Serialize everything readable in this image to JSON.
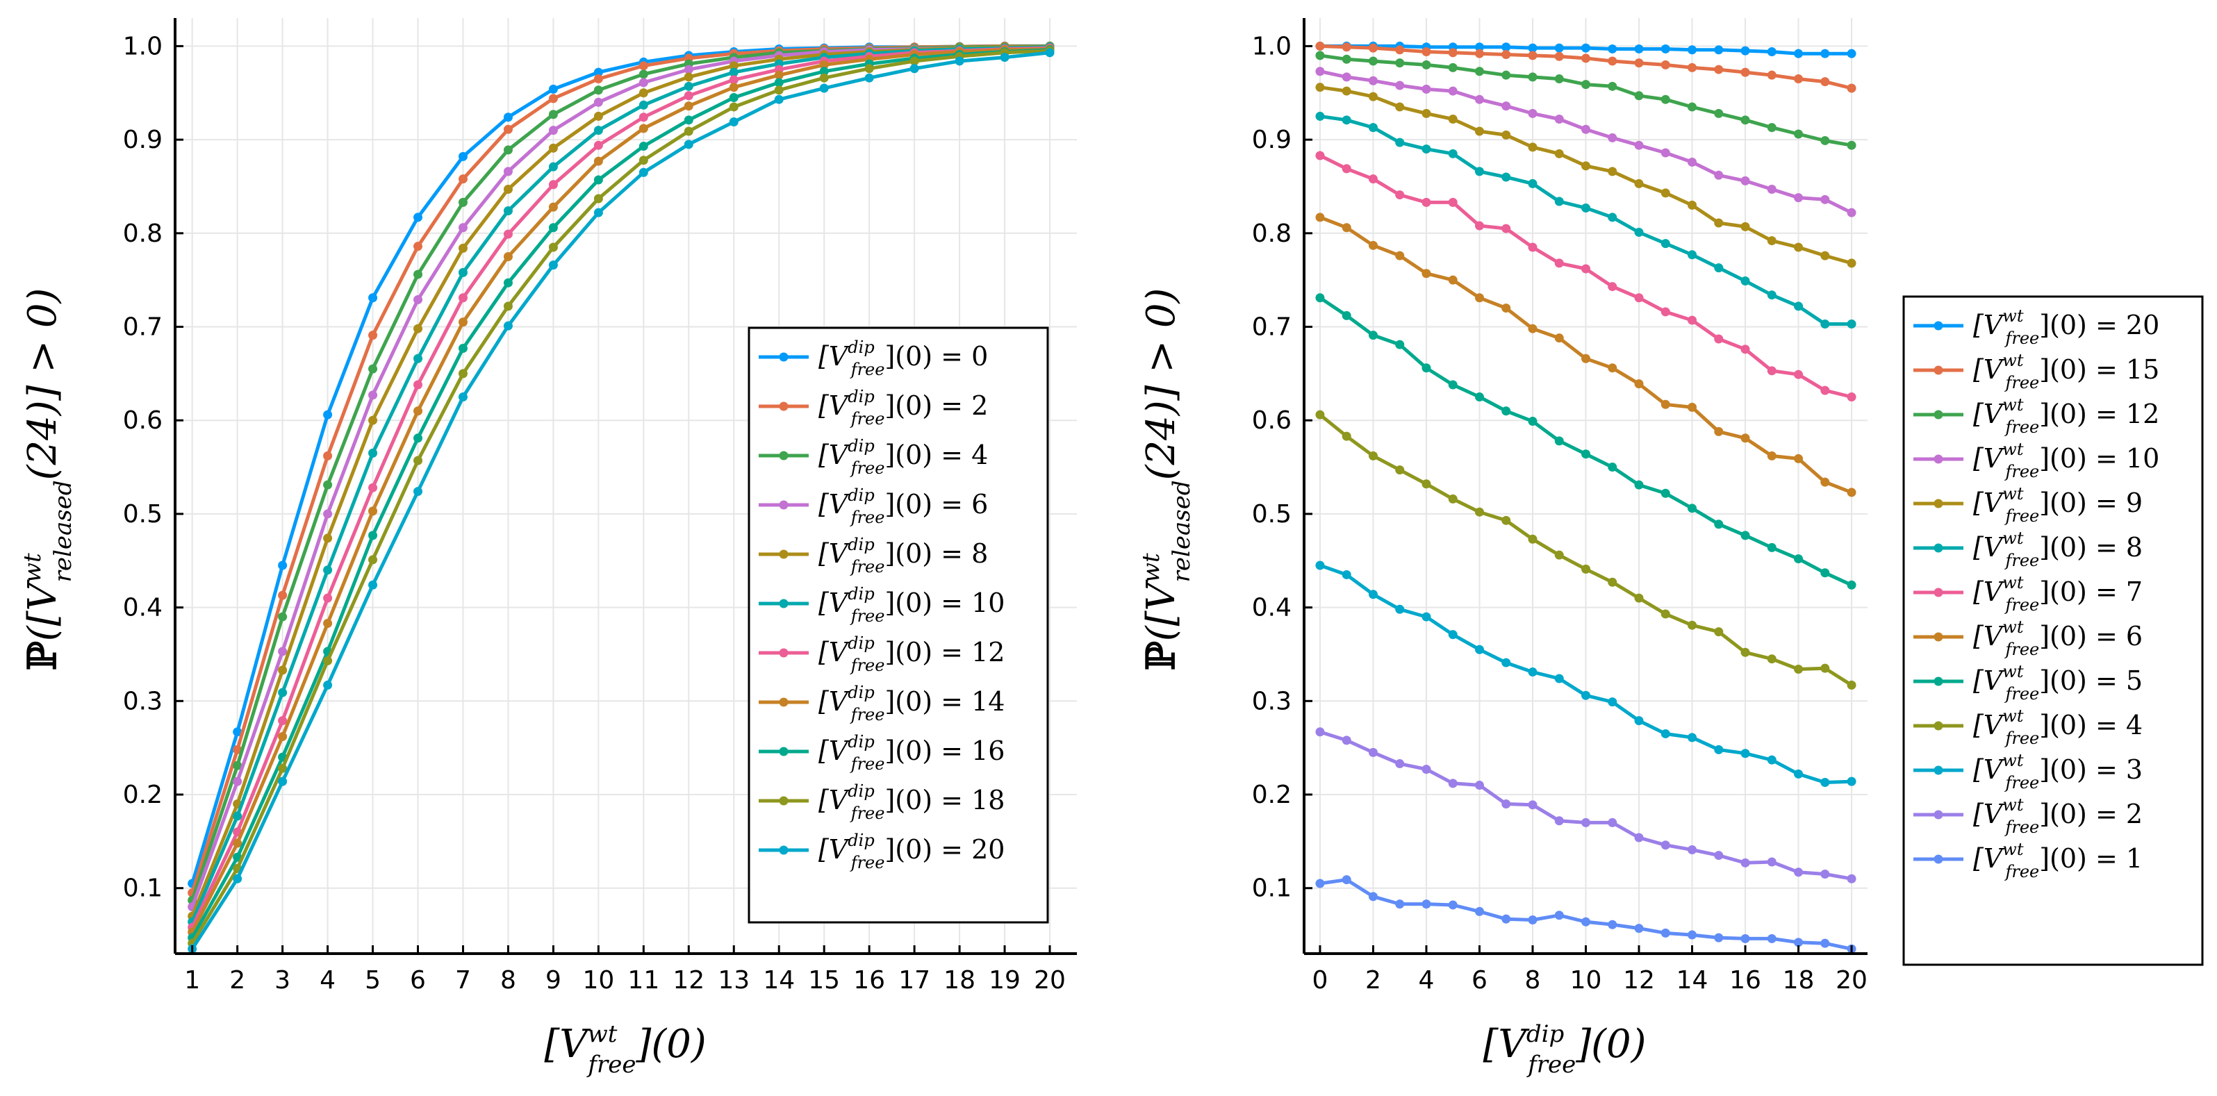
{
  "chart_data": [
    {
      "id": "left",
      "type": "line",
      "x": [
        1,
        2,
        3,
        4,
        5,
        6,
        7,
        8,
        9,
        10,
        11,
        12,
        13,
        14,
        15,
        16,
        17,
        18,
        19,
        20
      ],
      "xticks": [
        "1",
        "2",
        "3",
        "4",
        "5",
        "6",
        "7",
        "8",
        "9",
        "10",
        "11",
        "12",
        "13",
        "14",
        "15",
        "16",
        "17",
        "18",
        "19",
        "20"
      ],
      "xlim": [
        0.62,
        20.6
      ],
      "xlabel": "[V^wt_free](0)",
      "ylabel": "ℙ([V^wt_released(24)] > 0)",
      "ylim": [
        0.03,
        1.03
      ],
      "yticks": [
        "0.1",
        "0.2",
        "0.3",
        "0.4",
        "0.5",
        "0.6",
        "0.7",
        "0.8",
        "0.9",
        "1.0"
      ],
      "legend_position": "center-right",
      "legend_var": "dip",
      "series": [
        {
          "name": "[V^dip_free](0) = 0",
          "param": "0",
          "color": "#009AFA",
          "values": [
            0.105,
            0.267,
            0.445,
            0.606,
            0.731,
            0.817,
            0.882,
            0.924,
            0.954,
            0.972,
            0.983,
            0.99,
            0.994,
            0.997,
            0.998,
            0.999,
            0.999,
            0.9995,
            1.0,
            1.0
          ]
        },
        {
          "name": "[V^dip_free](0) = 2",
          "param": "2",
          "color": "#E36F47",
          "values": [
            0.095,
            0.248,
            0.413,
            0.562,
            0.691,
            0.786,
            0.858,
            0.911,
            0.944,
            0.965,
            0.979,
            0.987,
            0.992,
            0.995,
            0.997,
            0.998,
            0.999,
            0.9995,
            1.0,
            1.0
          ]
        },
        {
          "name": "[V^dip_free](0) = 4",
          "param": "4",
          "color": "#3EA44E",
          "values": [
            0.087,
            0.231,
            0.39,
            0.531,
            0.655,
            0.756,
            0.833,
            0.889,
            0.927,
            0.953,
            0.97,
            0.981,
            0.988,
            0.993,
            0.995,
            0.997,
            0.998,
            0.999,
            0.9995,
            1.0
          ]
        },
        {
          "name": "[V^dip_free](0) = 6",
          "param": "6",
          "color": "#C371D2",
          "values": [
            0.08,
            0.214,
            0.353,
            0.5,
            0.627,
            0.729,
            0.806,
            0.866,
            0.91,
            0.94,
            0.961,
            0.975,
            0.984,
            0.99,
            0.994,
            0.996,
            0.997,
            0.998,
            0.999,
            0.9995
          ]
        },
        {
          "name": "[V^dip_free](0) = 8",
          "param": "8",
          "color": "#AC8D18",
          "values": [
            0.07,
            0.19,
            0.333,
            0.474,
            0.6,
            0.698,
            0.784,
            0.847,
            0.891,
            0.925,
            0.95,
            0.967,
            0.979,
            0.986,
            0.991,
            0.994,
            0.996,
            0.998,
            0.999,
            0.9995
          ]
        },
        {
          "name": "[V^dip_free](0) = 10",
          "param": "10",
          "color": "#00A9AD",
          "values": [
            0.064,
            0.177,
            0.309,
            0.44,
            0.565,
            0.666,
            0.758,
            0.824,
            0.871,
            0.91,
            0.937,
            0.957,
            0.972,
            0.981,
            0.988,
            0.992,
            0.995,
            0.997,
            0.998,
            0.999
          ]
        },
        {
          "name": "[V^dip_free](0) = 12",
          "param": "12",
          "color": "#EC5E96",
          "values": [
            0.058,
            0.16,
            0.279,
            0.41,
            0.528,
            0.638,
            0.731,
            0.799,
            0.852,
            0.894,
            0.924,
            0.947,
            0.964,
            0.975,
            0.984,
            0.989,
            0.993,
            0.995,
            0.997,
            0.998
          ]
        },
        {
          "name": "[V^dip_free](0) = 14",
          "param": "14",
          "color": "#C68125",
          "values": [
            0.053,
            0.148,
            0.262,
            0.383,
            0.503,
            0.61,
            0.705,
            0.775,
            0.828,
            0.877,
            0.912,
            0.936,
            0.956,
            0.969,
            0.98,
            0.986,
            0.991,
            0.994,
            0.996,
            0.997
          ]
        },
        {
          "name": "[V^dip_free](0) = 16",
          "param": "16",
          "color": "#00A98D",
          "values": [
            0.047,
            0.133,
            0.24,
            0.353,
            0.477,
            0.581,
            0.677,
            0.747,
            0.806,
            0.857,
            0.893,
            0.921,
            0.945,
            0.961,
            0.973,
            0.981,
            0.987,
            0.991,
            0.994,
            0.996
          ]
        },
        {
          "name": "[V^dip_free](0) = 18",
          "param": "18",
          "color": "#8E971E",
          "values": [
            0.041,
            0.121,
            0.228,
            0.343,
            0.451,
            0.557,
            0.65,
            0.722,
            0.785,
            0.837,
            0.878,
            0.909,
            0.935,
            0.953,
            0.966,
            0.976,
            0.984,
            0.989,
            0.993,
            0.995
          ]
        },
        {
          "name": "[V^dip_free](0) = 20",
          "param": "20",
          "color": "#00A8CB",
          "values": [
            0.035,
            0.11,
            0.214,
            0.317,
            0.424,
            0.524,
            0.625,
            0.701,
            0.766,
            0.822,
            0.865,
            0.895,
            0.919,
            0.943,
            0.955,
            0.966,
            0.976,
            0.984,
            0.988,
            0.993
          ]
        }
      ]
    },
    {
      "id": "right",
      "type": "line",
      "x": [
        0,
        1,
        2,
        3,
        4,
        5,
        6,
        7,
        8,
        9,
        10,
        11,
        12,
        13,
        14,
        15,
        16,
        17,
        18,
        19,
        20
      ],
      "xticks": [
        "0",
        "2",
        "4",
        "6",
        "8",
        "10",
        "12",
        "14",
        "16",
        "18",
        "20"
      ],
      "xlim": [
        -0.6,
        20.6
      ],
      "xlabel": "[V^dip_free](0)",
      "ylabel": "ℙ([V^wt_released(24)] > 0)",
      "ylim": [
        0.03,
        1.03
      ],
      "yticks": [
        "0.1",
        "0.2",
        "0.3",
        "0.4",
        "0.5",
        "0.6",
        "0.7",
        "0.8",
        "0.9",
        "1.0"
      ],
      "legend_position": "outer-right",
      "legend_var": "wt",
      "series": [
        {
          "name": "[V^wt_free](0) = 20",
          "param": "20",
          "color": "#009AFA",
          "values": [
            1.0,
            1.0,
            1.0,
            1.0,
            0.999,
            0.999,
            0.999,
            0.999,
            0.998,
            0.998,
            0.998,
            0.997,
            0.997,
            0.997,
            0.996,
            0.996,
            0.995,
            0.994,
            0.992,
            0.992,
            0.992
          ]
        },
        {
          "name": "[V^wt_free](0) = 15",
          "param": "15",
          "color": "#E36F47",
          "values": [
            1.0,
            0.999,
            0.998,
            0.996,
            0.994,
            0.993,
            0.992,
            0.991,
            0.99,
            0.989,
            0.987,
            0.984,
            0.982,
            0.98,
            0.977,
            0.975,
            0.972,
            0.969,
            0.965,
            0.962,
            0.955
          ]
        },
        {
          "name": "[V^wt_free](0) = 12",
          "param": "12",
          "color": "#3EA44E",
          "values": [
            0.99,
            0.986,
            0.984,
            0.982,
            0.98,
            0.977,
            0.973,
            0.969,
            0.967,
            0.965,
            0.959,
            0.957,
            0.947,
            0.943,
            0.935,
            0.928,
            0.921,
            0.913,
            0.906,
            0.899,
            0.894
          ]
        },
        {
          "name": "[V^wt_free](0) = 10",
          "param": "10",
          "color": "#C371D2",
          "values": [
            0.973,
            0.967,
            0.963,
            0.958,
            0.954,
            0.952,
            0.943,
            0.936,
            0.928,
            0.922,
            0.911,
            0.902,
            0.894,
            0.886,
            0.876,
            0.862,
            0.856,
            0.847,
            0.838,
            0.836,
            0.822
          ]
        },
        {
          "name": "[V^wt_free](0) = 9",
          "param": "9",
          "color": "#AC8D18",
          "values": [
            0.956,
            0.952,
            0.946,
            0.935,
            0.928,
            0.922,
            0.909,
            0.905,
            0.892,
            0.885,
            0.872,
            0.866,
            0.853,
            0.843,
            0.83,
            0.811,
            0.807,
            0.792,
            0.785,
            0.776,
            0.768
          ]
        },
        {
          "name": "[V^wt_free](0) = 8",
          "param": "8",
          "color": "#00A9AD",
          "values": [
            0.925,
            0.921,
            0.913,
            0.897,
            0.89,
            0.885,
            0.866,
            0.86,
            0.853,
            0.834,
            0.827,
            0.817,
            0.801,
            0.789,
            0.777,
            0.763,
            0.749,
            0.734,
            0.722,
            0.703,
            0.703
          ]
        },
        {
          "name": "[V^wt_free](0) = 7",
          "param": "7",
          "color": "#EC5E96",
          "values": [
            0.883,
            0.869,
            0.858,
            0.841,
            0.833,
            0.833,
            0.808,
            0.805,
            0.785,
            0.768,
            0.762,
            0.743,
            0.731,
            0.716,
            0.707,
            0.687,
            0.676,
            0.653,
            0.649,
            0.632,
            0.625
          ]
        },
        {
          "name": "[V^wt_free](0) = 6",
          "param": "6",
          "color": "#C68125",
          "values": [
            0.817,
            0.806,
            0.787,
            0.776,
            0.757,
            0.75,
            0.731,
            0.72,
            0.698,
            0.688,
            0.666,
            0.656,
            0.639,
            0.617,
            0.614,
            0.588,
            0.581,
            0.562,
            0.559,
            0.534,
            0.523
          ]
        },
        {
          "name": "[V^wt_free](0) = 5",
          "param": "5",
          "color": "#00A98D",
          "values": [
            0.731,
            0.712,
            0.691,
            0.681,
            0.656,
            0.638,
            0.625,
            0.61,
            0.599,
            0.578,
            0.564,
            0.55,
            0.531,
            0.522,
            0.506,
            0.489,
            0.477,
            0.464,
            0.452,
            0.437,
            0.424
          ]
        },
        {
          "name": "[V^wt_free](0) = 4",
          "param": "4",
          "color": "#8E971E",
          "values": [
            0.606,
            0.583,
            0.562,
            0.547,
            0.532,
            0.516,
            0.502,
            0.493,
            0.473,
            0.456,
            0.441,
            0.427,
            0.41,
            0.393,
            0.381,
            0.374,
            0.352,
            0.345,
            0.334,
            0.335,
            0.317
          ]
        },
        {
          "name": "[V^wt_free](0) = 3",
          "param": "3",
          "color": "#00A8CB",
          "values": [
            0.445,
            0.435,
            0.414,
            0.398,
            0.39,
            0.371,
            0.355,
            0.341,
            0.331,
            0.324,
            0.306,
            0.299,
            0.279,
            0.265,
            0.261,
            0.248,
            0.244,
            0.237,
            0.222,
            0.213,
            0.214
          ]
        },
        {
          "name": "[V^wt_free](0) = 2",
          "param": "2",
          "color": "#9B7FE8",
          "values": [
            0.267,
            0.258,
            0.245,
            0.233,
            0.227,
            0.212,
            0.21,
            0.19,
            0.189,
            0.172,
            0.17,
            0.17,
            0.154,
            0.146,
            0.141,
            0.135,
            0.127,
            0.128,
            0.117,
            0.115,
            0.11
          ]
        },
        {
          "name": "[V^wt_free](0) = 1",
          "param": "1",
          "color": "#608CF6",
          "values": [
            0.105,
            0.109,
            0.091,
            0.083,
            0.083,
            0.082,
            0.075,
            0.067,
            0.066,
            0.071,
            0.064,
            0.061,
            0.057,
            0.052,
            0.05,
            0.047,
            0.046,
            0.046,
            0.042,
            0.041,
            0.035
          ]
        }
      ]
    }
  ]
}
